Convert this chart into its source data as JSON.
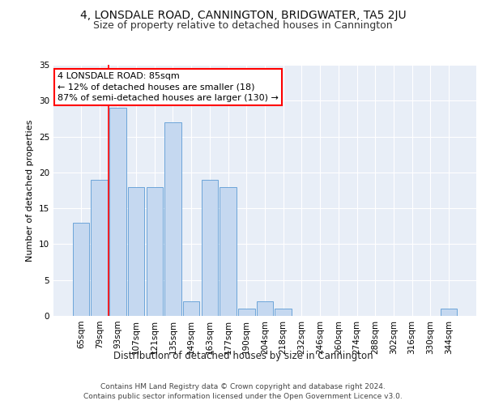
{
  "title": "4, LONSDALE ROAD, CANNINGTON, BRIDGWATER, TA5 2JU",
  "subtitle": "Size of property relative to detached houses in Cannington",
  "xlabel": "Distribution of detached houses by size in Cannington",
  "ylabel": "Number of detached properties",
  "categories": [
    "65sqm",
    "79sqm",
    "93sqm",
    "107sqm",
    "121sqm",
    "135sqm",
    "149sqm",
    "163sqm",
    "177sqm",
    "190sqm",
    "204sqm",
    "218sqm",
    "232sqm",
    "246sqm",
    "260sqm",
    "274sqm",
    "288sqm",
    "302sqm",
    "316sqm",
    "330sqm",
    "344sqm"
  ],
  "values": [
    13,
    19,
    29,
    18,
    18,
    27,
    2,
    19,
    18,
    1,
    2,
    1,
    0,
    0,
    0,
    0,
    0,
    0,
    0,
    0,
    1
  ],
  "bar_color": "#c5d8f0",
  "bar_edge_color": "#5b9bd5",
  "annotation_text": "4 LONSDALE ROAD: 85sqm\n← 12% of detached houses are smaller (18)\n87% of semi-detached houses are larger (130) →",
  "annotation_box_color": "white",
  "annotation_box_edge_color": "red",
  "ylim": [
    0,
    35
  ],
  "yticks": [
    0,
    5,
    10,
    15,
    20,
    25,
    30,
    35
  ],
  "background_color": "#e8eef7",
  "footer_line1": "Contains HM Land Registry data © Crown copyright and database right 2024.",
  "footer_line2": "Contains public sector information licensed under the Open Government Licence v3.0.",
  "title_fontsize": 10,
  "subtitle_fontsize": 9,
  "xlabel_fontsize": 8.5,
  "ylabel_fontsize": 8,
  "tick_fontsize": 7.5,
  "footer_fontsize": 6.5,
  "annotation_fontsize": 8
}
